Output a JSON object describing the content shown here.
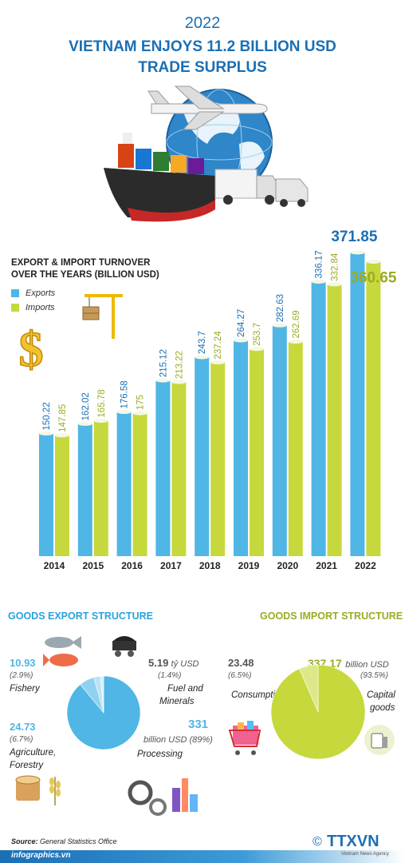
{
  "header": {
    "year": "2022",
    "title_line1": "VIETNAM ENJOYS 11.2 BILLION USD",
    "title_line2": "TRADE SURPLUS"
  },
  "colors": {
    "exports": "#4fb6e6",
    "imports": "#c7d83c",
    "title_blue": "#1a6fb5",
    "export_label": "#1a6fb5",
    "import_label": "#9cab24"
  },
  "chart_data": {
    "type": "bar",
    "title": "EXPORT & IMPORT TURNOVER OVER THE YEARS (BILLION USD)",
    "title_line1": "EXPORT & IMPORT TURNOVER",
    "title_line2": "OVER THE YEARS (BILLION USD)",
    "categories": [
      "2014",
      "2015",
      "2016",
      "2017",
      "2018",
      "2019",
      "2020",
      "2021",
      "2022"
    ],
    "series": [
      {
        "name": "Exports",
        "values": [
          150.22,
          162.02,
          176.58,
          215.12,
          243.7,
          264.27,
          282.63,
          336.17,
          371.85
        ]
      },
      {
        "name": "Imports",
        "values": [
          147.85,
          165.78,
          175,
          213.22,
          237.24,
          253.7,
          262.69,
          332.84,
          360.65
        ]
      }
    ],
    "labels": {
      "Exports": [
        "150.22",
        "162.02",
        "176.58",
        "215.12",
        "243.7",
        "264.27",
        "282.63",
        "336.17",
        "371.85"
      ],
      "Imports": [
        "147.85",
        "165.78",
        "175",
        "213.22",
        "237.24",
        "253.7",
        "262.69",
        "332.84",
        "360.65"
      ]
    },
    "legend_position": "top-left",
    "grid": false
  },
  "export_structure": {
    "title": "GOODS EXPORT STRUCTURE",
    "segments": [
      {
        "value": "10.93",
        "pct": "(2.9%)",
        "label": "Fishery",
        "share": 2.9
      },
      {
        "value": "5.19",
        "unit": "tỷ USD",
        "pct": "(1.4%)",
        "label1": "Fuel and",
        "label2": "Minerals",
        "share": 1.4
      },
      {
        "value": "24.73",
        "pct": "(6.7%)",
        "label1": "Agriculture,",
        "label2": "Forestry",
        "share": 6.7
      },
      {
        "value": "331",
        "unit": "billion USD (89%)",
        "label": "Processing",
        "share": 89
      }
    ]
  },
  "import_structure": {
    "title": "GOODS IMPORT STRUCTURE",
    "segments": [
      {
        "value": "23.48",
        "pct": "(6.5%)",
        "label": "Consumption",
        "share": 6.5
      },
      {
        "value": "337.17",
        "unit": "billion USD",
        "pct": "(93.5%)",
        "label1": "Capital",
        "label2": "goods",
        "share": 93.5
      }
    ]
  },
  "footer": {
    "source_label": "Source:",
    "source_text": "General Statistics Office",
    "site": "infographics.vn",
    "agency": "TTXVN",
    "agency_sub": "Vietnam News Agency"
  }
}
